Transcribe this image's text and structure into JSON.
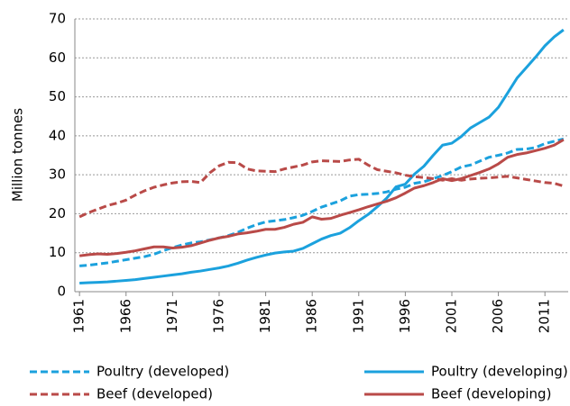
{
  "chart_data": {
    "type": "line",
    "y_label": "Million tonnes",
    "x": [
      1961,
      1962,
      1963,
      1964,
      1965,
      1966,
      1967,
      1968,
      1969,
      1970,
      1971,
      1972,
      1973,
      1974,
      1975,
      1976,
      1977,
      1978,
      1979,
      1980,
      1981,
      1982,
      1983,
      1984,
      1985,
      1986,
      1987,
      1988,
      1989,
      1990,
      1991,
      1992,
      1993,
      1994,
      1995,
      1996,
      1997,
      1998,
      1999,
      2000,
      2001,
      2002,
      2003,
      2004,
      2005,
      2006,
      2007,
      2008,
      2009,
      2010,
      2011,
      2012,
      2013
    ],
    "xlim": [
      1960.5,
      2013.5
    ],
    "xticks": [
      1961,
      1966,
      1971,
      1976,
      1981,
      1986,
      1991,
      1996,
      2001,
      2006,
      2011
    ],
    "ylim": [
      0,
      70
    ],
    "yticks": [
      0,
      10,
      20,
      30,
      40,
      50,
      60,
      70
    ],
    "grid": true,
    "series": [
      {
        "name": "Poultry (developed)",
        "color": "#1ba1dd",
        "dashed": true,
        "values": [
          6.6,
          6.8,
          7.1,
          7.4,
          7.8,
          8.2,
          8.6,
          9.0,
          9.6,
          10.5,
          11.3,
          12.0,
          12.5,
          12.8,
          13.3,
          13.8,
          14.4,
          15.2,
          16.3,
          17.2,
          17.9,
          18.2,
          18.5,
          19.0,
          19.6,
          20.6,
          21.7,
          22.5,
          23.3,
          24.5,
          24.9,
          25.0,
          25.2,
          25.6,
          26.3,
          26.8,
          27.8,
          28.2,
          29.0,
          29.8,
          30.8,
          32.0,
          32.5,
          33.5,
          34.5,
          35.0,
          35.6,
          36.5,
          36.6,
          37.0,
          38.0,
          38.6,
          39.2
        ]
      },
      {
        "name": "Poultry (developing)",
        "color": "#1ba1dd",
        "dashed": false,
        "values": [
          2.2,
          2.3,
          2.4,
          2.5,
          2.7,
          2.9,
          3.1,
          3.4,
          3.7,
          4.0,
          4.3,
          4.6,
          5.0,
          5.3,
          5.7,
          6.1,
          6.6,
          7.3,
          8.1,
          8.8,
          9.4,
          9.9,
          10.2,
          10.4,
          11.1,
          12.3,
          13.5,
          14.4,
          15.0,
          16.4,
          18.2,
          19.8,
          21.8,
          24.0,
          26.9,
          27.6,
          30.2,
          32.2,
          35.0,
          37.6,
          38.1,
          39.8,
          42.0,
          43.4,
          44.8,
          47.3,
          51.0,
          54.8,
          57.5,
          60.2,
          63.1,
          65.4,
          67.2
        ]
      },
      {
        "name": "Beef (developed)",
        "color": "#b94a48",
        "dashed": true,
        "values": [
          19.2,
          20.3,
          21.2,
          22.1,
          22.7,
          23.5,
          24.8,
          25.9,
          26.8,
          27.4,
          27.9,
          28.2,
          28.3,
          28.0,
          30.5,
          32.3,
          33.2,
          33.1,
          31.5,
          31.0,
          30.9,
          30.8,
          31.5,
          32.0,
          32.5,
          33.3,
          33.6,
          33.5,
          33.4,
          33.8,
          34.0,
          32.5,
          31.3,
          30.9,
          30.5,
          29.9,
          29.5,
          29.3,
          29.0,
          28.6,
          29.0,
          28.6,
          28.9,
          29.1,
          29.2,
          29.4,
          29.6,
          29.2,
          28.8,
          28.4,
          28.0,
          27.8,
          27.1
        ]
      },
      {
        "name": "Beef (developing)",
        "color": "#b94a48",
        "dashed": false,
        "values": [
          9.2,
          9.5,
          9.7,
          9.6,
          9.8,
          10.1,
          10.5,
          11.0,
          11.5,
          11.5,
          11.2,
          11.4,
          11.8,
          12.5,
          13.2,
          13.8,
          14.2,
          14.8,
          15.1,
          15.5,
          16.0,
          16.0,
          16.5,
          17.3,
          17.8,
          19.2,
          18.6,
          18.8,
          19.6,
          20.3,
          21.0,
          21.8,
          22.5,
          23.2,
          24.1,
          25.3,
          26.6,
          27.2,
          28.0,
          29.0,
          28.5,
          29.0,
          29.8,
          30.6,
          31.5,
          32.8,
          34.5,
          35.2,
          35.6,
          36.2,
          36.8,
          37.6,
          39.0
        ]
      }
    ]
  }
}
